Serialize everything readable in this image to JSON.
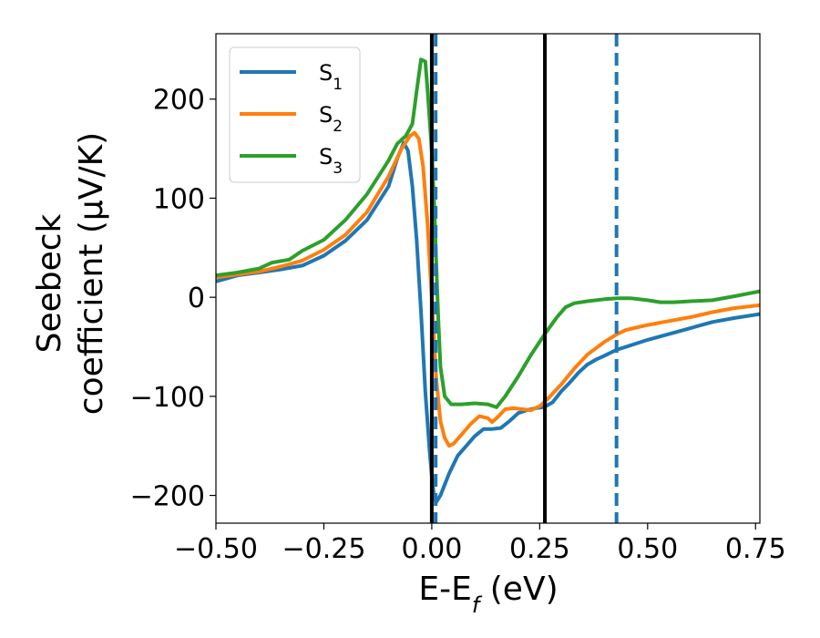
{
  "chart_data": {
    "type": "line",
    "xlabel_main": "E-E",
    "xlabel_sub": "f",
    "xlabel_unit": " (eV)",
    "ylabel_line1": "Seebeck",
    "ylabel_line2": "coefficient  (μV/K)",
    "xlim": [
      -0.5,
      0.76
    ],
    "ylim": [
      -228,
      266
    ],
    "xticks": [
      -0.5,
      -0.25,
      0.0,
      0.25,
      0.5,
      0.75
    ],
    "xtick_labels": [
      "−0.50",
      "−0.25",
      "0.00",
      "0.25",
      "0.50",
      "0.75"
    ],
    "yticks": [
      -200,
      -100,
      0,
      100,
      200
    ],
    "ytick_labels": [
      "−200",
      "−100",
      "0",
      "100",
      "200"
    ],
    "grid": false,
    "legend_position": "top-left",
    "vlines": [
      {
        "x": 0.0,
        "style": "solid",
        "color": "#000000"
      },
      {
        "x": 0.262,
        "style": "solid",
        "color": "#000000"
      },
      {
        "x": 0.009,
        "style": "dashed",
        "color": "#1f77b4"
      },
      {
        "x": 0.428,
        "style": "dashed",
        "color": "#1f77b4"
      }
    ],
    "series": [
      {
        "name_main": "S",
        "name_sub": "1",
        "color": "#1f77b4",
        "points": [
          [
            -0.5,
            16
          ],
          [
            -0.45,
            22
          ],
          [
            -0.4,
            25
          ],
          [
            -0.35,
            28
          ],
          [
            -0.3,
            32
          ],
          [
            -0.25,
            42
          ],
          [
            -0.2,
            57
          ],
          [
            -0.15,
            78
          ],
          [
            -0.1,
            112
          ],
          [
            -0.08,
            140
          ],
          [
            -0.065,
            156
          ],
          [
            -0.055,
            148
          ],
          [
            -0.045,
            112
          ],
          [
            -0.035,
            58
          ],
          [
            -0.025,
            -15
          ],
          [
            -0.015,
            -95
          ],
          [
            -0.005,
            -155
          ],
          [
            0.0,
            -180
          ],
          [
            0.005,
            -200
          ],
          [
            0.01,
            -207
          ],
          [
            0.02,
            -200
          ],
          [
            0.04,
            -178
          ],
          [
            0.06,
            -160
          ],
          [
            0.08,
            -150
          ],
          [
            0.1,
            -140
          ],
          [
            0.12,
            -133
          ],
          [
            0.14,
            -133
          ],
          [
            0.16,
            -132
          ],
          [
            0.18,
            -125
          ],
          [
            0.2,
            -117
          ],
          [
            0.22,
            -114
          ],
          [
            0.24,
            -112
          ],
          [
            0.26,
            -111
          ],
          [
            0.28,
            -106
          ],
          [
            0.3,
            -95
          ],
          [
            0.32,
            -86
          ],
          [
            0.34,
            -76
          ],
          [
            0.36,
            -68
          ],
          [
            0.38,
            -63
          ],
          [
            0.4,
            -59
          ],
          [
            0.428,
            -53
          ],
          [
            0.45,
            -50
          ],
          [
            0.5,
            -43
          ],
          [
            0.55,
            -37
          ],
          [
            0.6,
            -31
          ],
          [
            0.65,
            -25
          ],
          [
            0.7,
            -21
          ],
          [
            0.76,
            -17
          ]
        ]
      },
      {
        "name_main": "S",
        "name_sub": "2",
        "color": "#ff7f0e",
        "points": [
          [
            -0.5,
            20
          ],
          [
            -0.45,
            23
          ],
          [
            -0.4,
            26
          ],
          [
            -0.35,
            31
          ],
          [
            -0.3,
            37
          ],
          [
            -0.25,
            48
          ],
          [
            -0.2,
            63
          ],
          [
            -0.15,
            86
          ],
          [
            -0.1,
            122
          ],
          [
            -0.07,
            150
          ],
          [
            -0.05,
            163
          ],
          [
            -0.04,
            166
          ],
          [
            -0.03,
            160
          ],
          [
            -0.02,
            132
          ],
          [
            -0.01,
            75
          ],
          [
            0.0,
            0
          ],
          [
            0.01,
            -80
          ],
          [
            0.02,
            -125
          ],
          [
            0.03,
            -142
          ],
          [
            0.04,
            -150
          ],
          [
            0.05,
            -148
          ],
          [
            0.07,
            -138
          ],
          [
            0.09,
            -128
          ],
          [
            0.11,
            -120
          ],
          [
            0.13,
            -122
          ],
          [
            0.14,
            -126
          ],
          [
            0.15,
            -122
          ],
          [
            0.17,
            -113
          ],
          [
            0.19,
            -112
          ],
          [
            0.21,
            -113
          ],
          [
            0.23,
            -114
          ],
          [
            0.25,
            -110
          ],
          [
            0.27,
            -102
          ],
          [
            0.3,
            -88
          ],
          [
            0.33,
            -72
          ],
          [
            0.36,
            -58
          ],
          [
            0.4,
            -45
          ],
          [
            0.43,
            -37
          ],
          [
            0.45,
            -33
          ],
          [
            0.5,
            -28
          ],
          [
            0.55,
            -24
          ],
          [
            0.6,
            -20
          ],
          [
            0.65,
            -15
          ],
          [
            0.7,
            -11
          ],
          [
            0.76,
            -8
          ]
        ]
      },
      {
        "name_main": "S",
        "name_sub": "3",
        "color": "#2ca02c",
        "points": [
          [
            -0.5,
            22
          ],
          [
            -0.45,
            25
          ],
          [
            -0.4,
            29
          ],
          [
            -0.37,
            35
          ],
          [
            -0.33,
            38
          ],
          [
            -0.3,
            47
          ],
          [
            -0.25,
            58
          ],
          [
            -0.2,
            78
          ],
          [
            -0.15,
            104
          ],
          [
            -0.1,
            138
          ],
          [
            -0.08,
            155
          ],
          [
            -0.06,
            163
          ],
          [
            -0.045,
            175
          ],
          [
            -0.035,
            208
          ],
          [
            -0.025,
            240
          ],
          [
            -0.015,
            238
          ],
          [
            -0.01,
            210
          ],
          [
            0.0,
            148
          ],
          [
            0.005,
            100
          ],
          [
            0.01,
            40
          ],
          [
            0.015,
            -20
          ],
          [
            0.02,
            -70
          ],
          [
            0.03,
            -100
          ],
          [
            0.045,
            -108
          ],
          [
            0.07,
            -108
          ],
          [
            0.1,
            -107
          ],
          [
            0.13,
            -108
          ],
          [
            0.15,
            -111
          ],
          [
            0.17,
            -100
          ],
          [
            0.2,
            -80
          ],
          [
            0.23,
            -58
          ],
          [
            0.262,
            -37
          ],
          [
            0.29,
            -20
          ],
          [
            0.31,
            -10
          ],
          [
            0.33,
            -6
          ],
          [
            0.36,
            -4
          ],
          [
            0.4,
            -2
          ],
          [
            0.43,
            -1
          ],
          [
            0.46,
            -1
          ],
          [
            0.5,
            -3
          ],
          [
            0.53,
            -5
          ],
          [
            0.56,
            -5
          ],
          [
            0.6,
            -4
          ],
          [
            0.65,
            -3
          ],
          [
            0.7,
            1
          ],
          [
            0.76,
            6
          ]
        ]
      }
    ]
  }
}
